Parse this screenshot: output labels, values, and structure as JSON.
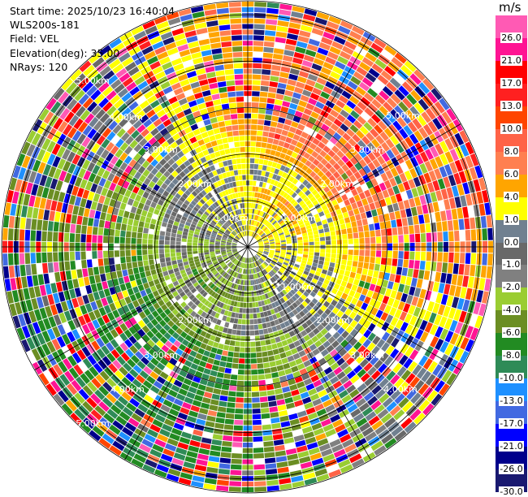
{
  "header": {
    "start_time": "Start time: 2025/10/23 16:40:04",
    "instrument": "WLS200s-181",
    "field": "Field: VEL",
    "elevation": "Elevation(deg): 35.00",
    "nrays": "NRays: 120"
  },
  "colorbar": {
    "unit": "m/s",
    "ticks": [
      "26.0",
      "21.0",
      "17.0",
      "13.0",
      "10.0",
      "8.0",
      "6.0",
      "4.0",
      "1.0",
      "0.0",
      "-1.0",
      "-2.0",
      "-4.0",
      "-6.0",
      "-8.0",
      "-10.0",
      "-13.0",
      "-17.0",
      "-21.0",
      "-26.0",
      "-30.0"
    ],
    "bins": [
      {
        "min": 26,
        "max": 30,
        "color": "#ff5ab4"
      },
      {
        "min": 21,
        "max": 26,
        "color": "#ff1493"
      },
      {
        "min": 17,
        "max": 21,
        "color": "#ff0000"
      },
      {
        "min": 13,
        "max": 17,
        "color": "#ff2020"
      },
      {
        "min": 10,
        "max": 13,
        "color": "#ff4500"
      },
      {
        "min": 8,
        "max": 10,
        "color": "#ff6347"
      },
      {
        "min": 6,
        "max": 8,
        "color": "#ff7f50"
      },
      {
        "min": 4,
        "max": 6,
        "color": "#ffa500"
      },
      {
        "min": 1,
        "max": 4,
        "color": "#ffff00"
      },
      {
        "min": 0,
        "max": 1,
        "color": "#708090"
      },
      {
        "min": -1,
        "max": 0,
        "color": "#696969"
      },
      {
        "min": -2,
        "max": -1,
        "color": "#808080"
      },
      {
        "min": -4,
        "max": -2,
        "color": "#9acd32"
      },
      {
        "min": -6,
        "max": -4,
        "color": "#6b8e23"
      },
      {
        "min": -8,
        "max": -6,
        "color": "#228b22"
      },
      {
        "min": -10,
        "max": -8,
        "color": "#2e8b57"
      },
      {
        "min": -13,
        "max": -10,
        "color": "#1e90ff"
      },
      {
        "min": -17,
        "max": -13,
        "color": "#4169e1"
      },
      {
        "min": -21,
        "max": -17,
        "color": "#0000ff"
      },
      {
        "min": -26,
        "max": -21,
        "color": "#00008b"
      },
      {
        "min": -30,
        "max": -26,
        "color": "#191970"
      }
    ]
  },
  "chart_data": {
    "type": "heatmap",
    "projection": "polar-ppi",
    "field": "VEL",
    "units": "m/s",
    "elevation_deg": 35.0,
    "n_rays": 120,
    "range_rings_km": [
      1,
      2,
      3,
      4,
      5
    ],
    "ring_labels": [
      "1.00km",
      "1.00km",
      "1.00km",
      "2.00km",
      "2.00km",
      "2.00km",
      "2.00km",
      "3.00km",
      "3.00km",
      "3.00km",
      "3.00km",
      "4.00km",
      "4.00km",
      "4.00km",
      "5.00km",
      "5.00km",
      "5.00km"
    ],
    "max_range_km": 5.3,
    "spokes_deg": [
      0,
      30,
      60,
      90,
      120,
      150,
      180,
      210,
      240,
      270,
      300,
      330
    ],
    "value_range": [
      -30,
      30
    ],
    "dominant_pattern": "positive (yellow/orange) toward north-east, negative (green) toward south-west, near-zero grey ring around 1-2 km, noisy multicolor speckle beyond 2.5 km"
  }
}
